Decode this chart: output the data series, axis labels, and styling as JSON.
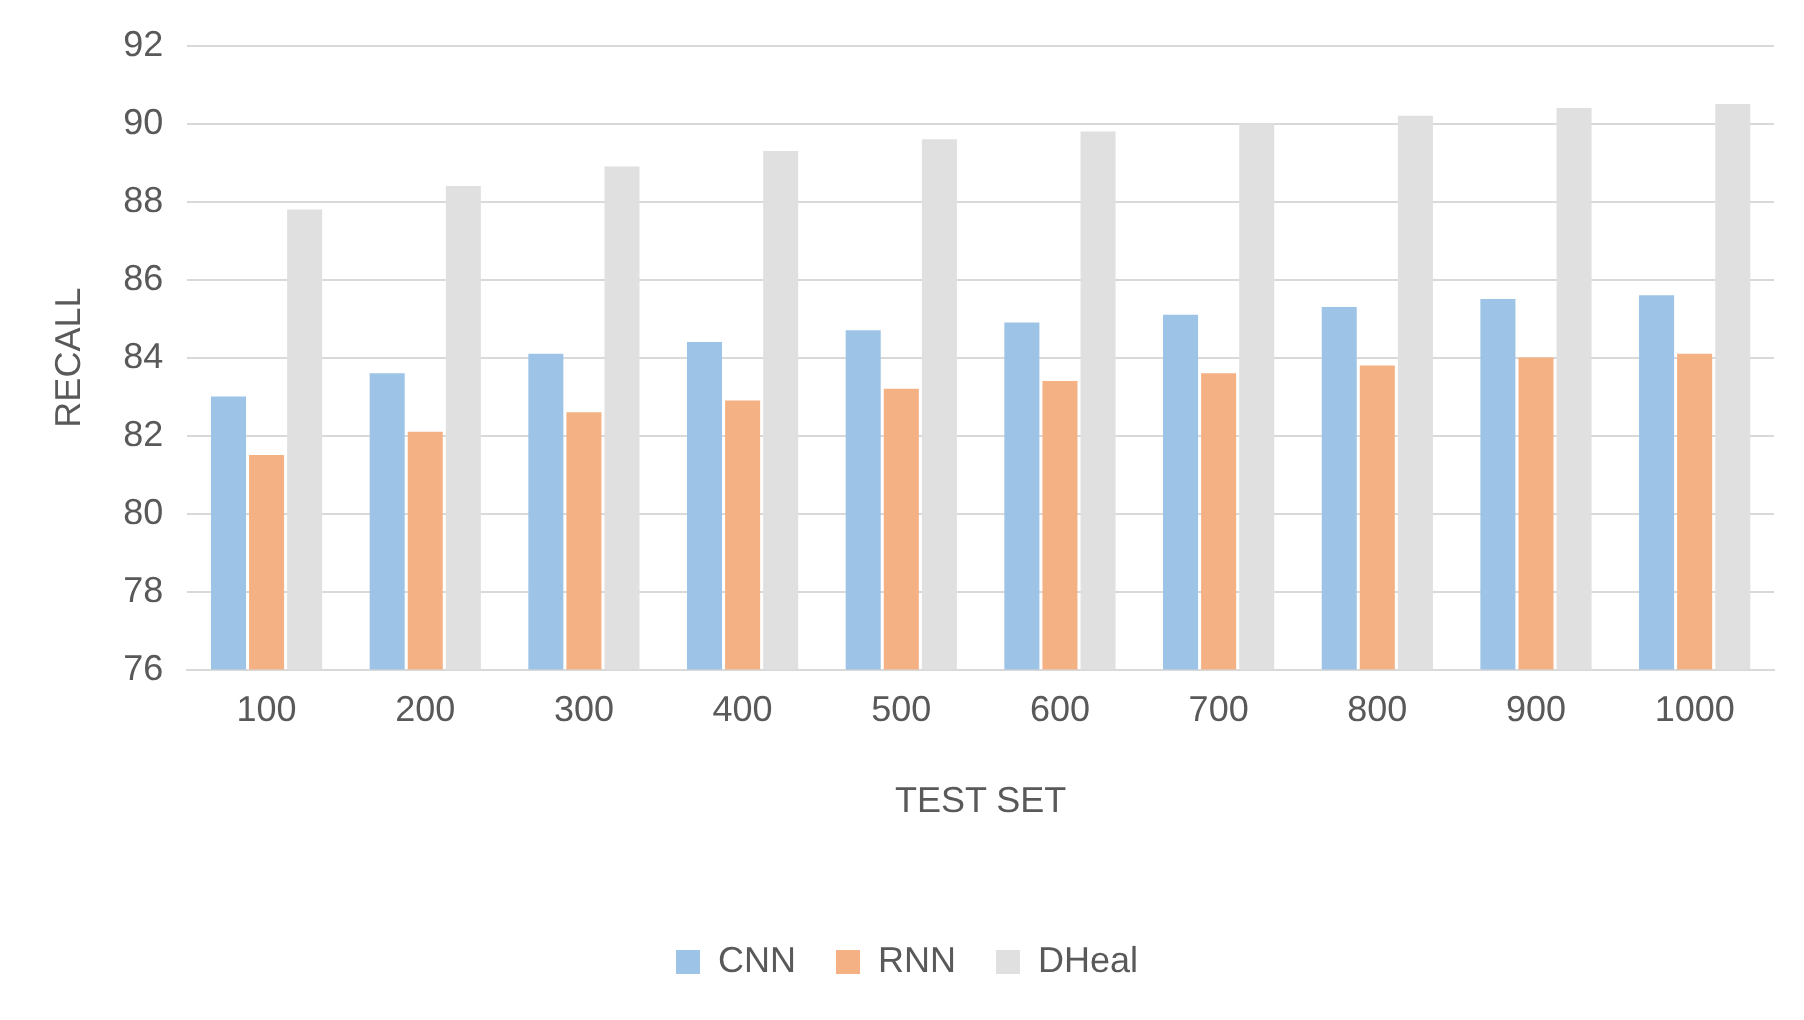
{
  "chart_data": {
    "type": "bar",
    "xlabel": "TEST SET",
    "ylabel": "RECALL",
    "categories": [
      "100",
      "200",
      "300",
      "400",
      "500",
      "600",
      "700",
      "800",
      "900",
      "1000"
    ],
    "series": [
      {
        "name": "CNN",
        "color": "#9dc3e6",
        "values": [
          83.0,
          83.6,
          84.1,
          84.4,
          84.7,
          84.9,
          85.1,
          85.3,
          85.5,
          85.6
        ]
      },
      {
        "name": "RNN",
        "color": "#f4b183",
        "values": [
          81.5,
          82.1,
          82.6,
          82.9,
          83.2,
          83.4,
          83.6,
          83.8,
          84.0,
          84.1
        ]
      },
      {
        "name": "DHeal",
        "color": "#e0e0e0",
        "values": [
          87.8,
          88.4,
          88.9,
          89.3,
          89.6,
          89.8,
          90.0,
          90.2,
          90.4,
          90.5
        ]
      }
    ],
    "ylim": [
      76,
      92
    ],
    "yticks": [
      76,
      78,
      80,
      82,
      84,
      86,
      88,
      90,
      92
    ],
    "grid": "y",
    "legend": "bottom"
  }
}
